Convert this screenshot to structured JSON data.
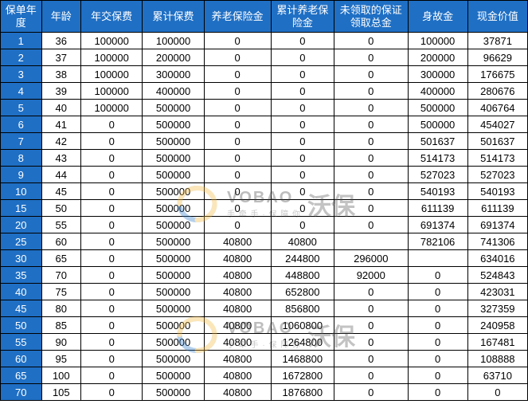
{
  "table": {
    "header_bg": "#1f6fc4",
    "header_color": "#ffffff",
    "border_color": "#000000",
    "cell_bg": "#ffffff",
    "cell_color": "#000000",
    "columns": [
      "保单年度",
      "年龄",
      "年交保费",
      "累计保费",
      "养老保险金",
      "累计养老保险金",
      "未领取的保证领取总金",
      "身故金",
      "现金价值"
    ],
    "rows": [
      [
        1,
        36,
        100000,
        100000,
        0,
        0,
        0,
        100000,
        37871
      ],
      [
        2,
        37,
        100000,
        200000,
        0,
        0,
        0,
        200000,
        96629
      ],
      [
        3,
        38,
        100000,
        300000,
        0,
        0,
        0,
        300000,
        176675
      ],
      [
        4,
        39,
        100000,
        400000,
        0,
        0,
        0,
        400000,
        280676
      ],
      [
        5,
        40,
        100000,
        500000,
        0,
        0,
        0,
        500000,
        406764
      ],
      [
        6,
        41,
        0,
        500000,
        0,
        0,
        0,
        500000,
        454027
      ],
      [
        7,
        42,
        0,
        500000,
        0,
        0,
        0,
        501637,
        501637
      ],
      [
        8,
        43,
        0,
        500000,
        0,
        0,
        0,
        514173,
        514173
      ],
      [
        9,
        44,
        0,
        500000,
        0,
        0,
        0,
        527023,
        527023
      ],
      [
        10,
        45,
        0,
        500000,
        0,
        0,
        0,
        540193,
        540193
      ],
      [
        15,
        50,
        0,
        500000,
        0,
        0,
        0,
        611139,
        611139
      ],
      [
        20,
        55,
        0,
        500000,
        0,
        0,
        0,
        691374,
        691374
      ],
      [
        25,
        60,
        0,
        500000,
        40800,
        40800,
        "",
        782106,
        741306
      ],
      [
        30,
        65,
        0,
        500000,
        40800,
        244800,
        296000,
        "",
        634016
      ],
      [
        35,
        70,
        0,
        500000,
        40800,
        448800,
        92000,
        0,
        524843
      ],
      [
        40,
        75,
        0,
        500000,
        40800,
        652800,
        0,
        0,
        423031
      ],
      [
        45,
        80,
        0,
        500000,
        40800,
        856800,
        0,
        0,
        327359
      ],
      [
        50,
        85,
        0,
        500000,
        40800,
        1060800,
        0,
        0,
        240958
      ],
      [
        55,
        90,
        0,
        500000,
        40800,
        1264800,
        0,
        0,
        167481
      ],
      [
        60,
        95,
        0,
        500000,
        40800,
        1468800,
        0,
        0,
        108888
      ],
      [
        65,
        100,
        0,
        500000,
        40800,
        1672800,
        0,
        0,
        63710
      ],
      [
        70,
        105,
        0,
        500000,
        40800,
        1876800,
        0,
        0,
        0
      ]
    ]
  },
  "watermark": {
    "brand": "沃保",
    "brand_latin": "VOBAO",
    "tagline": "手 牵 手 · 保 障 你",
    "circle_color_outer": "#2a7ac9",
    "circle_color_inner": "#f5b83d"
  }
}
